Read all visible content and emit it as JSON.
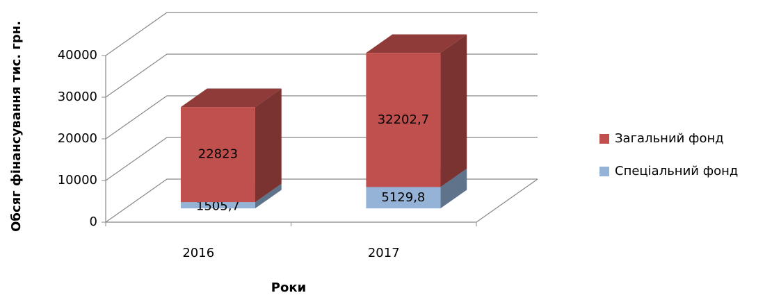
{
  "chart_data": {
    "type": "bar3d_stacked",
    "categories": [
      "2016",
      "2017"
    ],
    "series": [
      {
        "name": "Спеціальний фонд",
        "color": "#95b3d7",
        "values": [
          1505.7,
          5129.8
        ],
        "value_labels": [
          "1505,7",
          "5129,8"
        ]
      },
      {
        "name": "Загальний фонд",
        "color": "#c0504d",
        "values": [
          22823,
          32202.7
        ],
        "value_labels": [
          "22823",
          "32202,7"
        ]
      }
    ],
    "ylim": [
      0,
      40000
    ],
    "yticks": [
      0,
      10000,
      20000,
      30000,
      40000
    ],
    "xlabel": "Роки",
    "ylabel": "Обсяг фінансування тис. грн.",
    "grid": true,
    "legend": "right"
  }
}
